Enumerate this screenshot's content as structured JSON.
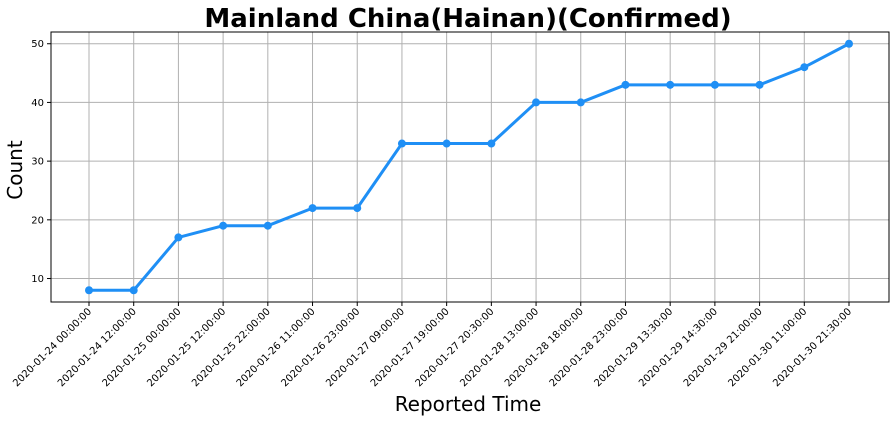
{
  "chart_data": {
    "type": "line",
    "title": "Mainland China(Hainan)(Confirmed)",
    "xlabel": "Reported Time",
    "ylabel": "Count",
    "categories": [
      "2020-01-24 00:00:00",
      "2020-01-24 12:00:00",
      "2020-01-25 00:00:00",
      "2020-01-25 12:00:00",
      "2020-01-25 22:00:00",
      "2020-01-26 11:00:00",
      "2020-01-26 23:00:00",
      "2020-01-27 09:00:00",
      "2020-01-27 19:00:00",
      "2020-01-27 20:30:00",
      "2020-01-28 13:00:00",
      "2020-01-28 18:00:00",
      "2020-01-28 23:00:00",
      "2020-01-29 13:30:00",
      "2020-01-29 14:30:00",
      "2020-01-29 21:00:00",
      "2020-01-30 11:00:00",
      "2020-01-30 21:30:00"
    ],
    "values": [
      8,
      8,
      17,
      19,
      19,
      22,
      22,
      33,
      33,
      33,
      40,
      40,
      43,
      43,
      43,
      43,
      46,
      50
    ],
    "yticks": [
      10,
      20,
      30,
      40,
      50
    ],
    "ylim": [
      6,
      52
    ],
    "grid": true,
    "color": "#1f8ff5"
  }
}
